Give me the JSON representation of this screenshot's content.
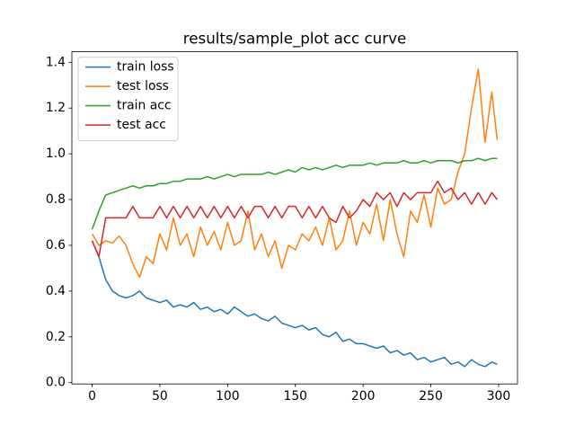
{
  "chart_data": {
    "type": "line",
    "title": "results/sample_plot acc curve",
    "x": [
      0,
      5,
      10,
      15,
      20,
      25,
      30,
      35,
      40,
      45,
      50,
      55,
      60,
      65,
      70,
      75,
      80,
      85,
      90,
      95,
      100,
      105,
      110,
      115,
      120,
      125,
      130,
      135,
      140,
      145,
      150,
      155,
      160,
      165,
      170,
      175,
      180,
      185,
      190,
      195,
      200,
      205,
      210,
      215,
      220,
      225,
      230,
      235,
      240,
      245,
      250,
      255,
      260,
      265,
      270,
      275,
      280,
      285,
      290,
      295,
      299
    ],
    "series": [
      {
        "name": "train loss",
        "color": "#1f77b4",
        "values": [
          0.62,
          0.55,
          0.45,
          0.4,
          0.38,
          0.37,
          0.38,
          0.4,
          0.37,
          0.36,
          0.35,
          0.36,
          0.33,
          0.34,
          0.33,
          0.35,
          0.32,
          0.33,
          0.31,
          0.32,
          0.3,
          0.33,
          0.31,
          0.29,
          0.3,
          0.28,
          0.27,
          0.29,
          0.26,
          0.25,
          0.24,
          0.25,
          0.23,
          0.24,
          0.21,
          0.2,
          0.22,
          0.18,
          0.19,
          0.17,
          0.17,
          0.16,
          0.15,
          0.16,
          0.13,
          0.14,
          0.12,
          0.13,
          0.1,
          0.11,
          0.09,
          0.1,
          0.11,
          0.08,
          0.09,
          0.07,
          0.1,
          0.08,
          0.07,
          0.09,
          0.08
        ]
      },
      {
        "name": "test loss",
        "color": "#ff7f0e",
        "values": [
          0.65,
          0.6,
          0.62,
          0.61,
          0.64,
          0.6,
          0.52,
          0.46,
          0.55,
          0.52,
          0.65,
          0.58,
          0.72,
          0.6,
          0.65,
          0.55,
          0.68,
          0.6,
          0.66,
          0.58,
          0.7,
          0.6,
          0.62,
          0.75,
          0.58,
          0.65,
          0.55,
          0.62,
          0.5,
          0.6,
          0.58,
          0.65,
          0.62,
          0.68,
          0.6,
          0.72,
          0.58,
          0.62,
          0.75,
          0.6,
          0.7,
          0.65,
          0.78,
          0.62,
          0.8,
          0.65,
          0.55,
          0.75,
          0.7,
          0.82,
          0.68,
          0.85,
          0.78,
          0.8,
          0.92,
          1.0,
          1.2,
          1.37,
          1.05,
          1.27,
          1.06
        ]
      },
      {
        "name": "train acc",
        "color": "#2ca02c",
        "values": [
          0.67,
          0.75,
          0.82,
          0.83,
          0.84,
          0.85,
          0.86,
          0.85,
          0.86,
          0.86,
          0.87,
          0.87,
          0.88,
          0.88,
          0.89,
          0.89,
          0.89,
          0.9,
          0.89,
          0.9,
          0.91,
          0.9,
          0.91,
          0.91,
          0.91,
          0.91,
          0.92,
          0.91,
          0.92,
          0.93,
          0.92,
          0.94,
          0.93,
          0.94,
          0.93,
          0.94,
          0.95,
          0.94,
          0.95,
          0.95,
          0.95,
          0.96,
          0.95,
          0.96,
          0.96,
          0.96,
          0.97,
          0.96,
          0.96,
          0.97,
          0.96,
          0.97,
          0.97,
          0.97,
          0.96,
          0.97,
          0.97,
          0.98,
          0.97,
          0.98,
          0.98
        ]
      },
      {
        "name": "test acc",
        "color": "#d62728",
        "values": [
          0.62,
          0.55,
          0.72,
          0.72,
          0.72,
          0.72,
          0.77,
          0.72,
          0.72,
          0.72,
          0.77,
          0.72,
          0.77,
          0.72,
          0.77,
          0.72,
          0.77,
          0.72,
          0.77,
          0.72,
          0.77,
          0.72,
          0.77,
          0.72,
          0.77,
          0.77,
          0.72,
          0.77,
          0.72,
          0.77,
          0.77,
          0.72,
          0.77,
          0.72,
          0.77,
          0.72,
          0.7,
          0.77,
          0.72,
          0.75,
          0.8,
          0.77,
          0.83,
          0.8,
          0.83,
          0.77,
          0.83,
          0.8,
          0.83,
          0.83,
          0.83,
          0.88,
          0.83,
          0.85,
          0.8,
          0.83,
          0.78,
          0.83,
          0.78,
          0.83,
          0.8
        ]
      }
    ],
    "xlim": [
      -14.95,
      313.95
    ],
    "xticks": [
      0,
      50,
      100,
      150,
      200,
      250,
      300
    ],
    "ylim": [
      -0.006,
      1.446
    ],
    "yticks": [
      {
        "value": 0,
        "label": "0.0"
      },
      0.2,
      0.4,
      0.6,
      0.8,
      {
        "value": 1,
        "label": "1.0"
      },
      1.2,
      1.4
    ],
    "legend": "upper left"
  }
}
